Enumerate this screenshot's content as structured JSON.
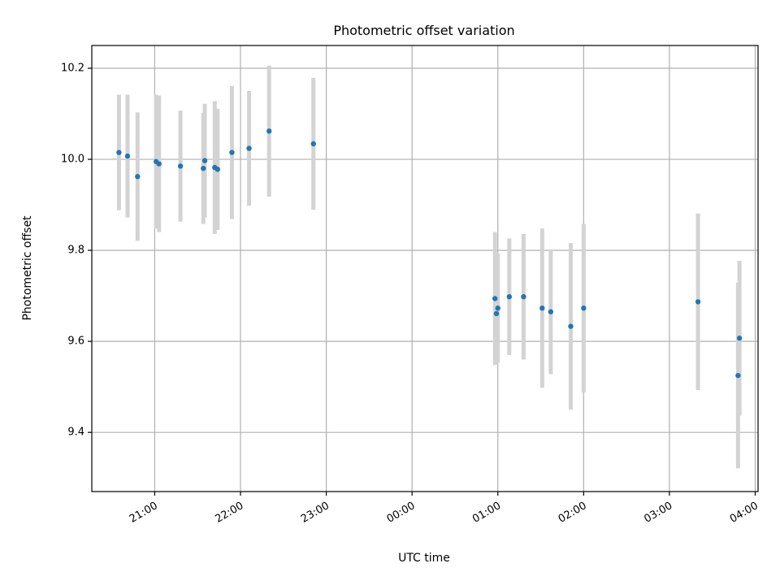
{
  "chart_data": {
    "type": "scatter",
    "title": "Photometric offset variation",
    "xlabel": "UTC time",
    "ylabel": "Photometric offset",
    "grid": true,
    "x_ticks": [
      "21:00",
      "22:00",
      "23:00",
      "00:00",
      "01:00",
      "02:00",
      "03:00",
      "04:00"
    ],
    "y_ticks": [
      "9.4",
      "9.6",
      "9.8",
      "10.0",
      "10.2"
    ],
    "xlim": [
      "20:16",
      "04:02"
    ],
    "ylim": [
      9.27,
      10.25
    ],
    "colors": {
      "point": "#1f77b4",
      "errorbar": "#d3d3d3",
      "grid": "#b0b0b0"
    },
    "points": [
      {
        "time": "20:35",
        "y": 10.015,
        "yerr": 0.127
      },
      {
        "time": "20:41",
        "y": 10.007,
        "yerr": 0.135
      },
      {
        "time": "20:48",
        "y": 9.962,
        "yerr": 0.141
      },
      {
        "time": "21:01",
        "y": 9.995,
        "yerr": 0.147
      },
      {
        "time": "21:03",
        "y": 9.99,
        "yerr": 0.15
      },
      {
        "time": "21:18",
        "y": 9.985,
        "yerr": 0.122
      },
      {
        "time": "21:34",
        "y": 9.98,
        "yerr": 0.122
      },
      {
        "time": "21:35",
        "y": 9.997,
        "yerr": 0.125
      },
      {
        "time": "21:42",
        "y": 9.982,
        "yerr": 0.146
      },
      {
        "time": "21:44",
        "y": 9.978,
        "yerr": 0.133
      },
      {
        "time": "21:54",
        "y": 10.015,
        "yerr": 0.146
      },
      {
        "time": "22:06",
        "y": 10.024,
        "yerr": 0.126
      },
      {
        "time": "22:20",
        "y": 10.062,
        "yerr": 0.144
      },
      {
        "time": "22:51",
        "y": 10.034,
        "yerr": 0.145
      },
      {
        "time": "00:58",
        "y": 9.694,
        "yerr": 0.146
      },
      {
        "time": "00:59",
        "y": 9.661,
        "yerr": 0.11
      },
      {
        "time": "01:00",
        "y": 9.673,
        "yerr": 0.12
      },
      {
        "time": "01:08",
        "y": 9.698,
        "yerr": 0.128
      },
      {
        "time": "01:18",
        "y": 9.698,
        "yerr": 0.138
      },
      {
        "time": "01:31",
        "y": 9.673,
        "yerr": 0.175
      },
      {
        "time": "01:37",
        "y": 9.665,
        "yerr": 0.137
      },
      {
        "time": "01:51",
        "y": 9.633,
        "yerr": 0.183
      },
      {
        "time": "02:00",
        "y": 9.673,
        "yerr": 0.185
      },
      {
        "time": "03:20",
        "y": 9.687,
        "yerr": 0.194
      },
      {
        "time": "03:48",
        "y": 9.525,
        "yerr": 0.204
      },
      {
        "time": "03:49",
        "y": 9.607,
        "yerr": 0.17
      }
    ]
  }
}
